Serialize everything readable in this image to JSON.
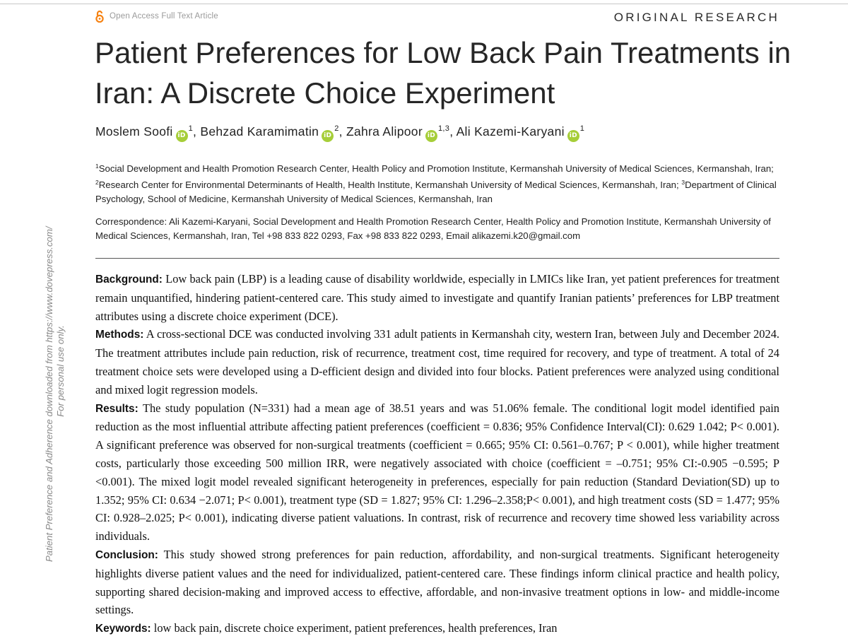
{
  "header": {
    "open_access_label": "Open Access Full Text Article",
    "article_type": "ORIGINAL RESEARCH",
    "open_access_icon": "open-access-lock-icon"
  },
  "sidebar": {
    "line1": "Patient Preference and Adherence downloaded from https://www.dovepress.com/",
    "line2": "For personal use only."
  },
  "article": {
    "title": "Patient Preferences for Low Back Pain Treatments in Iran: A Discrete Choice Experiment",
    "authors": [
      {
        "name": "Moslem Soofi",
        "sup": "1",
        "sep": ","
      },
      {
        "name": "Behzad Karamimatin",
        "sup": "2",
        "sep": ","
      },
      {
        "name": "Zahra Alipoor",
        "sup": "1,3",
        "sep": ","
      },
      {
        "name": "Ali Kazemi-Karyani",
        "sup": "1",
        "sep": ""
      }
    ],
    "orcid_label": "iD",
    "affiliations": [
      {
        "sup": "1",
        "text": "Social Development and Health Promotion Research Center, Health Policy and Promotion Institute, Kermanshah University of Medical Sciences, Kermanshah, Iran; "
      },
      {
        "sup": "2",
        "text": "Research Center for Environmental Determinants of Health, Health Institute, Kermanshah University of Medical Sciences, Kermanshah, Iran; "
      },
      {
        "sup": "3",
        "text": "Department of Clinical Psychology, School of Medicine, Kermanshah University of Medical Sciences, Kermanshah, Iran"
      }
    ],
    "correspondence": "Correspondence: Ali Kazemi-Karyani, Social Development and Health Promotion Research Center, Health Policy and Promotion Institute, Kermanshah University of Medical Sciences, Kermanshah, Iran, Tel +98 833 822 0293, Fax +98 833 822 0293, Email alikazemi.k20@gmail.com",
    "abstract": {
      "background_label": "Background:",
      "background": "Low back pain (LBP) is a leading cause of disability worldwide, especially in LMICs like Iran, yet patient preferences for treatment remain unquantified, hindering patient-centered care. This study aimed to investigate and quantify Iranian patients’ preferences for LBP treatment attributes using a discrete choice experiment (DCE).",
      "methods_label": "Methods:",
      "methods": "A cross-sectional DCE was conducted involving 331 adult patients in Kermanshah city, western Iran, between July and December 2024. The treatment attributes include pain reduction, risk of recurrence, treatment cost, time required for recovery, and type of treatment. A total of 24 treatment choice sets were developed using a D-efficient design and divided into four blocks. Patient preferences were analyzed using conditional and mixed logit regression models.",
      "results_label": "Results:",
      "results": "The study population (N=331) had a mean age of 38.51 years and was 51.06% female. The conditional logit model identified pain reduction as the most influential attribute affecting patient preferences (coefficient = 0.836; 95% Confidence Interval(CI): 0.629 1.042; P< 0.001). A significant preference was observed for non-surgical treatments (coefficient = 0.665; 95% CI: 0.561–0.767; P < 0.001), while higher treatment costs, particularly those exceeding 500 million IRR, were negatively associated with choice (coefficient = –0.751; 95% CI:-0.905 −0.595; P <0.001). The mixed logit model revealed significant heterogeneity in preferences, especially for pain reduction (Standard Deviation(SD) up to 1.352; 95% CI: 0.634 −2.071; P< 0.001), treatment type (SD = 1.827; 95% CI: 1.296–2.358;P< 0.001), and high treatment costs (SD = 1.477; 95% CI: 0.928–2.025; P< 0.001), indicating diverse patient valuations. In contrast, risk of recurrence and recovery time showed less variability across individuals.",
      "conclusion_label": "Conclusion:",
      "conclusion": "This study showed strong preferences for pain reduction, affordability, and non-surgical treatments. Significant heterogeneity highlights diverse patient values and the need for individualized, patient-centered care. These findings inform clinical practice and health policy, supporting shared decision-making and improved access to effective, affordable, and non-invasive treatment options in low- and middle-income settings.",
      "keywords_label": "Keywords:",
      "keywords": "low back pain, discrete choice experiment, patient preferences, health preferences, Iran"
    }
  },
  "colors": {
    "open_access_orange": "#f68212",
    "orcid_green": "#a6ce39",
    "muted_gray": "#9a9a9a"
  }
}
